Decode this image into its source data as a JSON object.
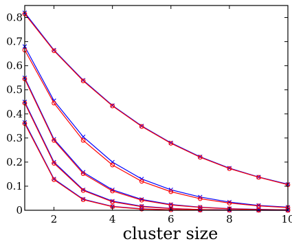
{
  "chart_data": {
    "type": "line",
    "title": "",
    "xlabel": "cluster size",
    "ylabel": "",
    "xlim": [
      1,
      10
    ],
    "ylim": [
      0,
      0.85
    ],
    "xticks": [
      2,
      4,
      6,
      8,
      10
    ],
    "yticks": [
      0,
      0.1,
      0.2,
      0.3,
      0.4,
      0.5,
      0.6,
      0.7,
      0.8
    ],
    "xtick_labels": [
      "2",
      "4",
      "6",
      "8",
      "10"
    ],
    "ytick_labels": [
      "0",
      "0.1",
      "0.2",
      "0.3",
      "0.4",
      "0.5",
      "0.6",
      "0.7",
      "0.8"
    ],
    "grid": false,
    "legend": "none",
    "x": [
      1,
      2,
      3,
      4,
      5,
      6,
      7,
      8,
      9,
      10
    ],
    "series": [
      {
        "color": "#0000ff",
        "marker": "x",
        "values": [
          0.82,
          0.665,
          0.54,
          0.435,
          0.35,
          0.28,
          0.222,
          0.175,
          0.138,
          0.108
        ]
      },
      {
        "color": "#ff0000",
        "marker": "circle",
        "values": [
          0.815,
          0.662,
          0.537,
          0.433,
          0.348,
          0.278,
          0.22,
          0.173,
          0.137,
          0.106
        ]
      },
      {
        "color": "#0000ff",
        "marker": "x",
        "values": [
          0.68,
          0.455,
          0.305,
          0.2,
          0.13,
          0.085,
          0.055,
          0.034,
          0.02,
          0.013
        ]
      },
      {
        "color": "#ff0000",
        "marker": "circle",
        "values": [
          0.665,
          0.445,
          0.29,
          0.188,
          0.12,
          0.077,
          0.048,
          0.03,
          0.018,
          0.011
        ]
      },
      {
        "color": "#0000ff",
        "marker": "x",
        "values": [
          0.55,
          0.295,
          0.158,
          0.085,
          0.045,
          0.024,
          0.013,
          0.007,
          0.004,
          0.002
        ]
      },
      {
        "color": "#ff0000",
        "marker": "circle",
        "values": [
          0.545,
          0.29,
          0.152,
          0.08,
          0.042,
          0.022,
          0.012,
          0.006,
          0.003,
          0.002
        ]
      },
      {
        "color": "#0000ff",
        "marker": "x",
        "values": [
          0.45,
          0.2,
          0.085,
          0.038,
          0.017,
          0.008,
          0.003,
          0.0015,
          0.0007,
          0.0003
        ]
      },
      {
        "color": "#ff0000",
        "marker": "circle",
        "values": [
          0.445,
          0.195,
          0.082,
          0.035,
          0.015,
          0.007,
          0.003,
          0.0013,
          0.0006,
          0.0003
        ]
      },
      {
        "color": "#0000ff",
        "marker": "x",
        "values": [
          0.365,
          0.13,
          0.046,
          0.016,
          0.006,
          0.002,
          0.0008,
          0.0003,
          0.0001,
          4e-05
        ]
      },
      {
        "color": "#ff0000",
        "marker": "circle",
        "values": [
          0.36,
          0.127,
          0.044,
          0.015,
          0.005,
          0.002,
          0.0007,
          0.0002,
          0.0001,
          3e-05
        ]
      }
    ]
  }
}
